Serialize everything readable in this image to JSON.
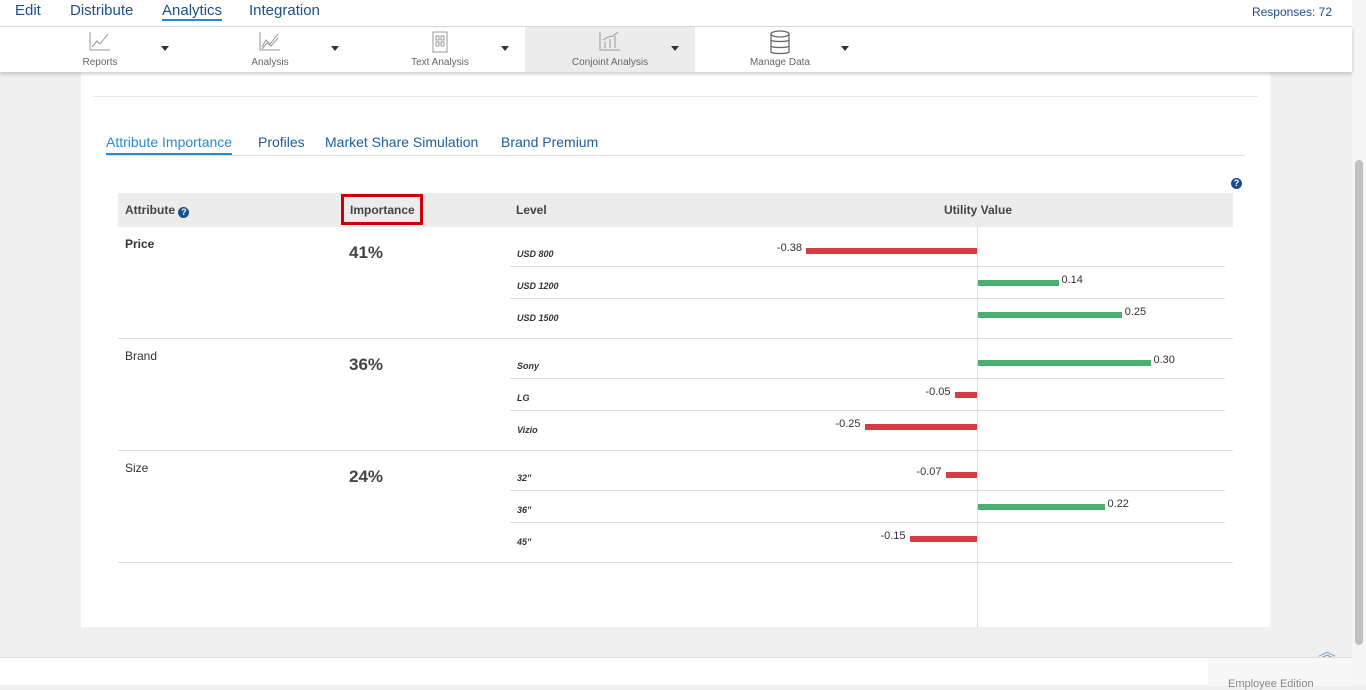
{
  "topnav": {
    "items": [
      "Edit",
      "Distribute",
      "Analytics",
      "Integration"
    ],
    "active": "Analytics",
    "responses": "Responses: 72"
  },
  "toolbar": {
    "items": [
      {
        "label": "Reports",
        "icon": "line-chart-icon"
      },
      {
        "label": "Analysis",
        "icon": "area-chart-icon"
      },
      {
        "label": "Text Analysis",
        "icon": "text-document-icon"
      },
      {
        "label": "Conjoint Analysis",
        "icon": "conjoint-chart-icon"
      },
      {
        "label": "Manage Data",
        "icon": "database-icon"
      }
    ],
    "active": "Conjoint Analysis"
  },
  "tabs": [
    "Attribute Importance",
    "Profiles",
    "Market Share Simulation",
    "Brand Premium"
  ],
  "table": {
    "headers": {
      "attribute": "Attribute",
      "importance": "Importance",
      "level": "Level",
      "utility": "Utility Value"
    },
    "rows": [
      {
        "attribute": "Price",
        "importance": "41%",
        "levels": [
          {
            "name": "USD 800",
            "value": -0.38,
            "label": "-0.38"
          },
          {
            "name": "USD 1200",
            "value": 0.14,
            "label": "0.14"
          },
          {
            "name": "USD 1500",
            "value": 0.25,
            "label": "0.25"
          }
        ]
      },
      {
        "attribute": "Brand",
        "importance": "36%",
        "levels": [
          {
            "name": "Sony",
            "value": 0.3,
            "label": "0.30"
          },
          {
            "name": "LG",
            "value": -0.05,
            "label": "-0.05"
          },
          {
            "name": "Vizio",
            "value": -0.25,
            "label": "-0.25"
          }
        ]
      },
      {
        "attribute": "Size",
        "importance": "24%",
        "levels": [
          {
            "name": "32\"",
            "value": -0.07,
            "label": "-0.07"
          },
          {
            "name": "36\"",
            "value": 0.22,
            "label": "0.22"
          },
          {
            "name": "45\"",
            "value": -0.15,
            "label": "-0.15"
          }
        ]
      }
    ]
  },
  "colors": {
    "positive": "#4caf6e",
    "negative": "#d04040",
    "highlight": "#cc0000",
    "link": "#1a4f8a"
  },
  "footer": {
    "edition": "Employee Edition"
  }
}
